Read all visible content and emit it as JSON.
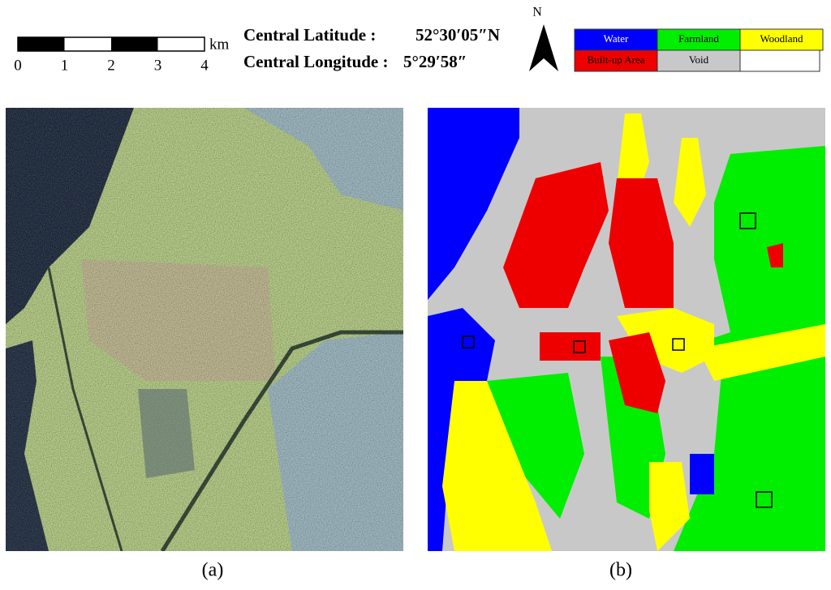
{
  "scale_bar": {
    "ticks": [
      "0",
      "1",
      "2",
      "3",
      "4"
    ],
    "unit": "km"
  },
  "location": {
    "latitude_label": "Central Latitude :",
    "latitude": "52°30′05″N",
    "longitude_label": "Central Longitude :",
    "longitude": "5°29′58″"
  },
  "north_arrow": {
    "label": "N"
  },
  "legend": [
    {
      "label": "Water",
      "color": "#0000ff"
    },
    {
      "label": "Farmland",
      "color": "#00ee00"
    },
    {
      "label": "Woodland",
      "color": "#ffff00"
    },
    {
      "label": "Built-up Area",
      "color": "#ee0000"
    },
    {
      "label": "Void",
      "color": "#c8c8c8"
    }
  ],
  "panels": [
    {
      "caption": "(a)"
    },
    {
      "caption": "(b)"
    }
  ]
}
